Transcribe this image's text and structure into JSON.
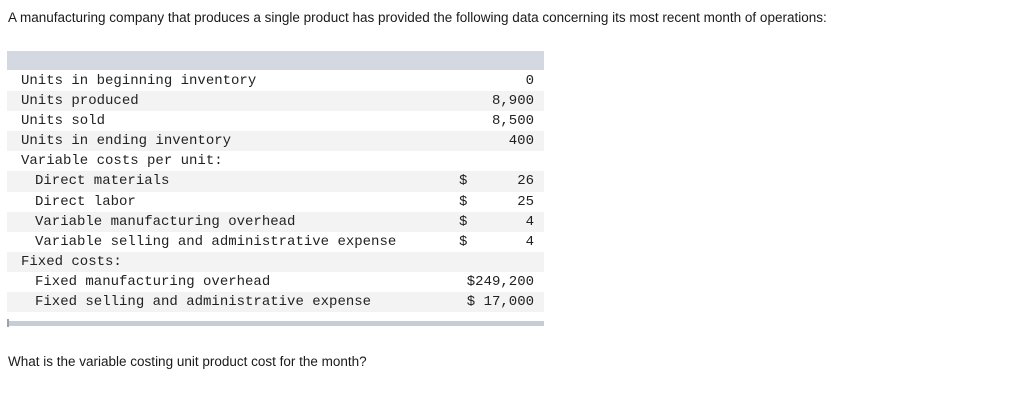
{
  "intro_text": "A manufacturing company that produces a single product has provided the following data concerning its most recent month of operations:",
  "table": {
    "rows": [
      {
        "label": "Units in beginning inventory",
        "dollar": "",
        "value": "0"
      },
      {
        "label": "Units produced",
        "dollar": "",
        "value": "8,900"
      },
      {
        "label": "Units sold",
        "dollar": "",
        "value": "8,500"
      },
      {
        "label": "Units in ending inventory",
        "dollar": "",
        "value": "400"
      },
      {
        "label": "Variable costs per unit:",
        "dollar": "",
        "value": ""
      },
      {
        "label": "Direct materials",
        "dollar": "$",
        "value": "26"
      },
      {
        "label": "Direct labor",
        "dollar": "$",
        "value": "25"
      },
      {
        "label": "Variable manufacturing overhead",
        "dollar": "$",
        "value": "4"
      },
      {
        "label": "Variable selling and administrative expense",
        "dollar": "$",
        "value": "4"
      },
      {
        "label": "Fixed costs:",
        "dollar": "",
        "value": ""
      },
      {
        "label": "Fixed manufacturing overhead",
        "dollar": "",
        "value": "$249,200"
      },
      {
        "label": "Fixed selling and administrative expense",
        "dollar": "",
        "value": "$ 17,000"
      }
    ]
  },
  "question_text": "What is the variable costing unit product cost for the month?"
}
